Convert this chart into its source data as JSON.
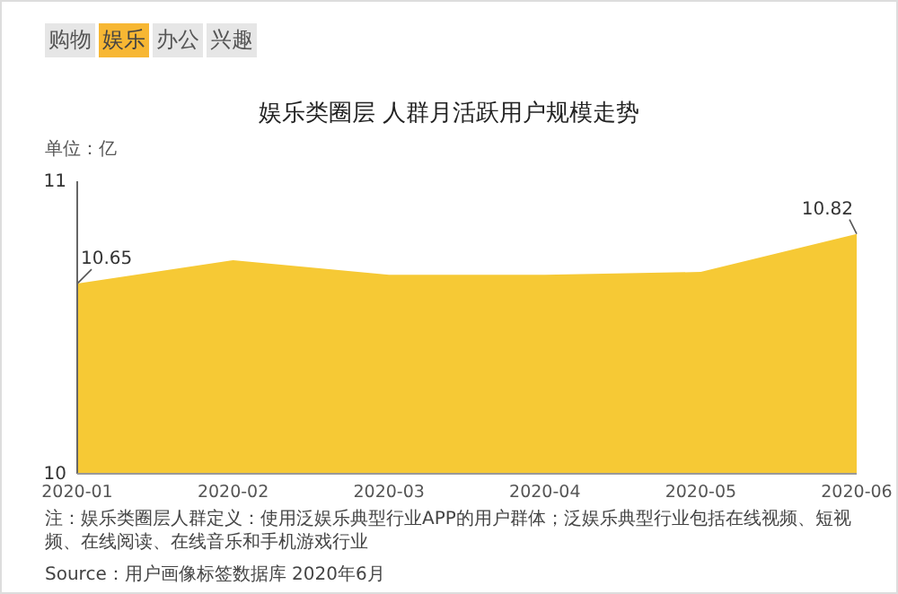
{
  "chart_data": {
    "type": "area",
    "title": "娱乐类圈层 人群月活跃用户规模走势",
    "ylabel": "单位：亿",
    "annotations": [
      "购物",
      "娱乐",
      "办公",
      "兴趣",
      "注：娱乐类圈层人群定义：使用泛娱乐典型行业APP的用户群体；泛娱乐典型行业包括在线视频、短视频、在线阅读、在线音乐和手机游戏行业",
      "Source：用户画像标签数据库 2020年6月"
    ],
    "categories": [
      "2020-01",
      "2020-02",
      "2020-03",
      "2020-04",
      "2020-05",
      "2020-06"
    ],
    "series": [
      {
        "color": "#f6c935",
        "values": [
          10.65,
          10.73,
          10.68,
          10.68,
          10.69,
          10.82
        ],
        "value_labels": [
          "10.65",
          null,
          null,
          null,
          null,
          "10.82"
        ]
      }
    ],
    "ylim": [
      10,
      11
    ],
    "yticks": [
      10,
      11
    ]
  }
}
